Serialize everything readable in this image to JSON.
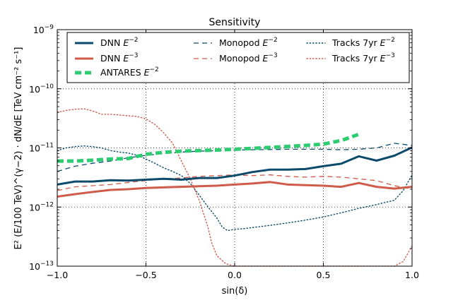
{
  "chart_data": {
    "type": "line",
    "title": "Sensitivity",
    "xlabel": "sin(δ)",
    "ylabel": "E² (E/100 TeV)^(γ−2) · dN/dE  [TeV cm⁻² s⁻¹]",
    "xlim": [
      -1.0,
      1.0
    ],
    "ylim": [
      1e-13,
      1e-09
    ],
    "yscale": "log",
    "grid": true,
    "legend_position": "top",
    "x_ticks": [
      {
        "value": -1.0,
        "label": "−1.0"
      },
      {
        "value": -0.5,
        "label": "−0.5"
      },
      {
        "value": 0.0,
        "label": "0.0"
      },
      {
        "value": 0.5,
        "label": "0.5"
      },
      {
        "value": 1.0,
        "label": "1.0"
      }
    ],
    "y_ticks": [
      {
        "value": 1e-13,
        "base": "10",
        "exp": "−13"
      },
      {
        "value": 1e-12,
        "base": "10",
        "exp": "−12"
      },
      {
        "value": 1e-11,
        "base": "10",
        "exp": "−11"
      },
      {
        "value": 1e-10,
        "base": "10",
        "exp": "−10"
      },
      {
        "value": 1e-09,
        "base": "10",
        "exp": "−9"
      }
    ],
    "series": [
      {
        "name": "DNN E^{-2}",
        "legend_main": "DNN ",
        "legend_sup": "−2",
        "color": "#0b4a6b",
        "style": "solid",
        "width": 3,
        "x": [
          -1.0,
          -0.9,
          -0.8,
          -0.7,
          -0.6,
          -0.5,
          -0.4,
          -0.3,
          -0.2,
          -0.1,
          0.0,
          0.1,
          0.2,
          0.3,
          0.4,
          0.5,
          0.6,
          0.7,
          0.8,
          0.9,
          1.0
        ],
        "y": [
          2.4e-12,
          2.7e-12,
          2.7e-12,
          2.85e-12,
          2.8e-12,
          2.9e-12,
          3e-12,
          2.9e-12,
          3.1e-12,
          3.1e-12,
          3.4e-12,
          3.9e-12,
          4.3e-12,
          4.3e-12,
          4.4e-12,
          4.9e-12,
          5.4e-12,
          7.2e-12,
          6.1e-12,
          7.4e-12,
          1.02e-11
        ]
      },
      {
        "name": "DNN E^{-3}",
        "legend_main": "DNN ",
        "legend_sup": "−3",
        "color": "#cf5b4b",
        "style": "solid",
        "width": 3,
        "x": [
          -1.0,
          -0.9,
          -0.8,
          -0.7,
          -0.6,
          -0.5,
          -0.4,
          -0.3,
          -0.2,
          -0.1,
          0.0,
          0.1,
          0.2,
          0.3,
          0.4,
          0.5,
          0.6,
          0.7,
          0.8,
          0.9,
          1.0
        ],
        "y": [
          1.5e-12,
          1.65e-12,
          1.8e-12,
          1.95e-12,
          2e-12,
          2.1e-12,
          2.15e-12,
          2.2e-12,
          2.25e-12,
          2.3e-12,
          2.4e-12,
          2.5e-12,
          2.65e-12,
          2.4e-12,
          2.35e-12,
          2.3e-12,
          2.2e-12,
          2.55e-12,
          2.2e-12,
          2.05e-12,
          2.2e-12
        ]
      },
      {
        "name": "ANTARES E^{-2}",
        "legend_main": "ANTARES ",
        "legend_sup": "−2",
        "color": "#2ecc71",
        "style": "dashed-thick",
        "width": 5,
        "x": [
          -1.0,
          -0.9,
          -0.8,
          -0.7,
          -0.6,
          -0.5,
          -0.4,
          -0.3,
          -0.2,
          -0.1,
          0.0,
          0.1,
          0.2,
          0.3,
          0.4,
          0.5,
          0.6,
          0.7
        ],
        "y": [
          6e-12,
          6e-12,
          6.2e-12,
          6.5e-12,
          6.6e-12,
          7.8e-12,
          8.4e-12,
          8.8e-12,
          9e-12,
          9.2e-12,
          9.5e-12,
          9.8e-12,
          1.02e-11,
          1.06e-11,
          1.1e-11,
          1.16e-11,
          1.33e-11,
          1.7e-11
        ]
      },
      {
        "name": "Monopod E^{-2}",
        "legend_main": "Monopod ",
        "legend_sup": "−2",
        "color": "#0b4a6b",
        "style": "dashed",
        "width": 1.3,
        "x": [
          -1.0,
          -0.9,
          -0.8,
          -0.7,
          -0.6,
          -0.5,
          -0.4,
          -0.3,
          -0.2,
          -0.1,
          0.0,
          0.1,
          0.2,
          0.3,
          0.4,
          0.5,
          0.6,
          0.7,
          0.8,
          0.9,
          1.0
        ],
        "y": [
          4e-12,
          4.9e-12,
          5.5e-12,
          6e-12,
          6.8e-12,
          7.5e-12,
          8e-12,
          8.5e-12,
          8.8e-12,
          9e-12,
          9.2e-12,
          9.3e-12,
          9.4e-12,
          9.5e-12,
          9.5e-12,
          9.5e-12,
          9.3e-12,
          9.5e-12,
          1e-11,
          1.2e-11,
          1.1e-11
        ]
      },
      {
        "name": "Monopod E^{-3}",
        "legend_main": "Monopod ",
        "legend_sup": "−3",
        "color": "#cf5b4b",
        "style": "dashed",
        "width": 1.3,
        "x": [
          -1.0,
          -0.9,
          -0.8,
          -0.7,
          -0.6,
          -0.5,
          -0.4,
          -0.3,
          -0.2,
          -0.1,
          0.0,
          0.1,
          0.2,
          0.3,
          0.4,
          0.5,
          0.6,
          0.7,
          0.8,
          0.9,
          1.0
        ],
        "y": [
          1.9e-12,
          2.2e-12,
          2.3e-12,
          2.4e-12,
          2.6e-12,
          2.8e-12,
          3e-12,
          3.1e-12,
          3.3e-12,
          3.4e-12,
          3.5e-12,
          3.4e-12,
          3.5e-12,
          3.3e-12,
          3.2e-12,
          3.3e-12,
          3.2e-12,
          3e-12,
          2.8e-12,
          2.3e-12,
          2e-12
        ]
      },
      {
        "name": "Tracks 7yr E^{-2}",
        "legend_main": "Tracks 7yr ",
        "legend_sup": "−2",
        "color": "#0b4a6b",
        "style": "dotted",
        "width": 1.4,
        "x": [
          -1.0,
          -0.95,
          -0.9,
          -0.85,
          -0.8,
          -0.75,
          -0.7,
          -0.65,
          -0.6,
          -0.55,
          -0.5,
          -0.45,
          -0.4,
          -0.35,
          -0.3,
          -0.25,
          -0.2,
          -0.15,
          -0.1,
          -0.07,
          -0.04,
          0.0,
          0.05,
          0.1,
          0.2,
          0.3,
          0.4,
          0.5,
          0.6,
          0.7,
          0.8,
          0.85,
          0.9,
          0.95,
          1.0
        ],
        "y": [
          9e-12,
          1e-11,
          1.05e-11,
          1.08e-11,
          1.05e-11,
          1e-11,
          9e-12,
          8.5e-12,
          8.2e-12,
          7.5e-12,
          6.5e-12,
          5.5e-12,
          4.6e-12,
          4e-12,
          3.4e-12,
          2.5e-12,
          1.6e-12,
          1e-12,
          6.5e-13,
          4.6e-13,
          4e-13,
          4.2e-13,
          4.3e-13,
          4.5e-13,
          4.9e-13,
          5.4e-13,
          6e-13,
          6.8e-13,
          8e-13,
          9.5e-13,
          1.1e-12,
          1.2e-12,
          1.3e-12,
          1.9e-12,
          3.5e-12
        ]
      },
      {
        "name": "Tracks 7yr E^{-3}",
        "legend_main": "Tracks 7yr ",
        "legend_sup": "−3",
        "color": "#cf5b4b",
        "style": "dotted",
        "width": 1.4,
        "x": [
          -1.0,
          -0.95,
          -0.9,
          -0.85,
          -0.8,
          -0.75,
          -0.7,
          -0.65,
          -0.6,
          -0.55,
          -0.5,
          -0.45,
          -0.4,
          -0.35,
          -0.3,
          -0.25,
          -0.2,
          -0.15,
          -0.13,
          -0.1,
          -0.05,
          0.0,
          0.1,
          0.2,
          0.3,
          0.4,
          0.5,
          0.6,
          0.7,
          0.8,
          0.9,
          0.95,
          1.0
        ],
        "y": [
          4e-11,
          4.3e-11,
          4.5e-11,
          4.6e-11,
          4.2e-11,
          3.7e-11,
          3.7e-11,
          3.6e-11,
          3.5e-11,
          3.4e-11,
          3.1e-11,
          2.5e-11,
          1.8e-11,
          1.2e-11,
          6e-12,
          3e-12,
          1.3e-12,
          4.5e-13,
          2.5e-13,
          1.5e-13,
          1.1e-13,
          1e-13,
          1e-13,
          1e-13,
          1e-13,
          1e-13,
          1e-13,
          1e-13,
          1e-13,
          1e-13,
          1e-13,
          1.2e-13,
          2.2e-13
        ]
      }
    ]
  }
}
